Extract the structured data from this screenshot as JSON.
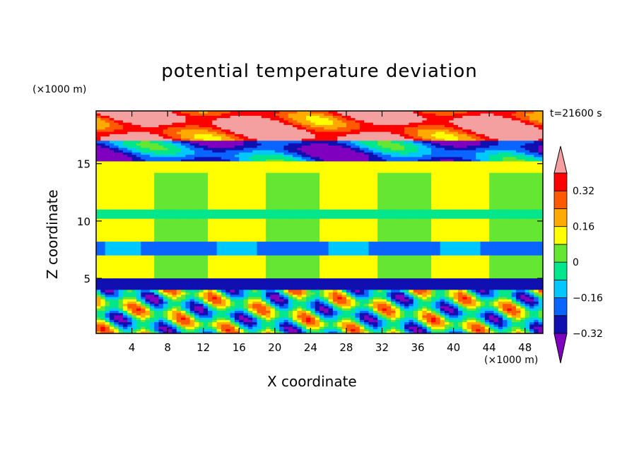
{
  "chart_data": {
    "type": "heatmap",
    "title": "potential temperature deviation",
    "xlabel": "X coordinate",
    "ylabel": "Z coordinate",
    "x_unit": "(×1000 m)",
    "z_unit": "(×1000 m)",
    "time_label": "t=21600 s",
    "xlim": [
      0,
      50
    ],
    "ylim": [
      0.2,
      19.6
    ],
    "x_ticks": [
      4,
      8,
      12,
      16,
      20,
      24,
      28,
      32,
      36,
      40,
      44,
      48
    ],
    "y_ticks": [
      5,
      10,
      15
    ],
    "colorbar": {
      "tick_labels": [
        "0.32",
        "0.16",
        "0",
        "−0.16",
        "−0.32"
      ],
      "levels": [
        -0.4,
        -0.32,
        -0.24,
        -0.16,
        -0.08,
        0,
        0.08,
        0.16,
        0.24,
        0.32,
        0.4
      ],
      "colors": [
        "#7f00bf",
        "#1010b0",
        "#0a64ff",
        "#00c8ff",
        "#00e68c",
        "#64e632",
        "#ffff00",
        "#ffaa00",
        "#ff5a00",
        "#ff0000",
        "#f5a0a0"
      ]
    },
    "bands": [
      {
        "z": [
          17.0,
          19.6
        ],
        "value": 0.3,
        "pattern": "upper"
      },
      {
        "z": [
          15.2,
          17.0
        ],
        "value": -0.3,
        "pattern": "upper"
      },
      {
        "z": [
          14.2,
          15.2
        ],
        "value": 0.05,
        "pattern": "flat"
      },
      {
        "z": [
          11.0,
          14.2
        ],
        "value": 0.0,
        "pattern": "flat"
      },
      {
        "z": [
          10.2,
          11.0
        ],
        "value": -0.1,
        "pattern": "flat"
      },
      {
        "z": [
          8.2,
          10.2
        ],
        "value": 0.0,
        "pattern": "flat"
      },
      {
        "z": [
          7.0,
          8.2
        ],
        "value": -0.25,
        "pattern": "flat"
      },
      {
        "z": [
          5.0,
          7.0
        ],
        "value": 0.0,
        "pattern": "flat"
      },
      {
        "z": [
          4.0,
          5.0
        ],
        "value": -0.38,
        "pattern": "flat"
      },
      {
        "z": [
          0.2,
          4.0
        ],
        "value": -0.1,
        "pattern": "turbulent"
      }
    ]
  }
}
